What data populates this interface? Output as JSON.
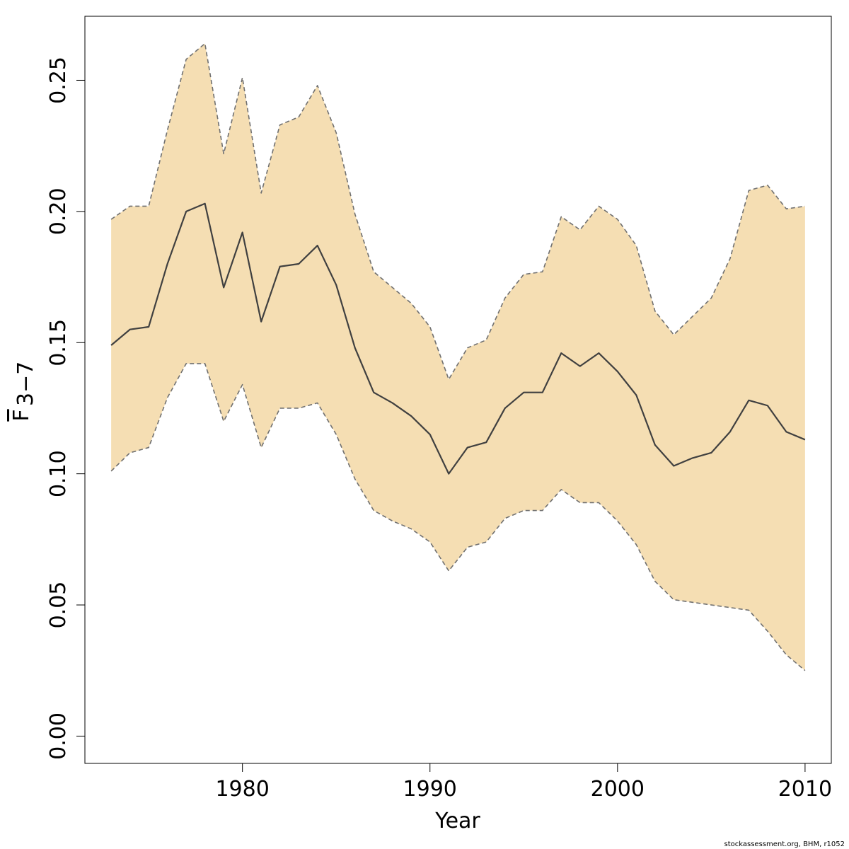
{
  "chart_data": {
    "type": "area",
    "title": "",
    "xlabel": "Year",
    "ylabel_main": "F",
    "ylabel_sub": "3−7",
    "credit": "stockassessment.org, BHM, r1052",
    "xlim": [
      1971.6,
      2011.4
    ],
    "ylim": [
      -0.0104,
      0.2744
    ],
    "x_ticks": [
      1980,
      1990,
      2000,
      2010
    ],
    "x_tick_labels": [
      "1980",
      "1990",
      "2000",
      "2010"
    ],
    "y_ticks": [
      0.0,
      0.05,
      0.1,
      0.15,
      0.2,
      0.25
    ],
    "y_tick_labels": [
      "0.00",
      "0.05",
      "0.10",
      "0.15",
      "0.20",
      "0.25"
    ],
    "grid": false,
    "legend": "none",
    "colors": {
      "band_fill": "#F5DEB3",
      "bound_line": "#707070",
      "estimate_line": "#404040"
    },
    "x": [
      1973,
      1974,
      1975,
      1976,
      1977,
      1978,
      1979,
      1980,
      1981,
      1982,
      1983,
      1984,
      1985,
      1986,
      1987,
      1988,
      1989,
      1990,
      1991,
      1992,
      1993,
      1994,
      1995,
      1996,
      1997,
      1998,
      1999,
      2000,
      2001,
      2002,
      2003,
      2004,
      2005,
      2006,
      2007,
      2008,
      2009,
      2010
    ],
    "series": [
      {
        "role": "estimate",
        "values": [
          0.149,
          0.155,
          0.156,
          0.18,
          0.2,
          0.203,
          0.171,
          0.192,
          0.158,
          0.179,
          0.18,
          0.187,
          0.172,
          0.148,
          0.131,
          0.127,
          0.122,
          0.115,
          0.1,
          0.11,
          0.112,
          0.125,
          0.131,
          0.131,
          0.146,
          0.141,
          0.146,
          0.139,
          0.13,
          0.111,
          0.103,
          0.106,
          0.108,
          0.116,
          0.128,
          0.126,
          0.116,
          0.113
        ]
      },
      {
        "role": "upper",
        "values": [
          0.197,
          0.202,
          0.202,
          0.231,
          0.258,
          0.264,
          0.222,
          0.251,
          0.207,
          0.233,
          0.236,
          0.248,
          0.23,
          0.199,
          0.177,
          0.171,
          0.165,
          0.156,
          0.136,
          0.148,
          0.151,
          0.167,
          0.176,
          0.177,
          0.198,
          0.193,
          0.202,
          0.197,
          0.187,
          0.162,
          0.153,
          0.16,
          0.167,
          0.182,
          0.208,
          0.21,
          0.201,
          0.202
        ]
      },
      {
        "role": "lower",
        "values": [
          0.101,
          0.108,
          0.11,
          0.129,
          0.142,
          0.142,
          0.12,
          0.134,
          0.11,
          0.125,
          0.125,
          0.127,
          0.115,
          0.098,
          0.086,
          0.082,
          0.079,
          0.074,
          0.063,
          0.072,
          0.074,
          0.083,
          0.086,
          0.086,
          0.094,
          0.089,
          0.089,
          0.082,
          0.073,
          0.059,
          0.052,
          0.051,
          0.05,
          0.049,
          0.048,
          0.04,
          0.031,
          0.025
        ]
      }
    ]
  }
}
